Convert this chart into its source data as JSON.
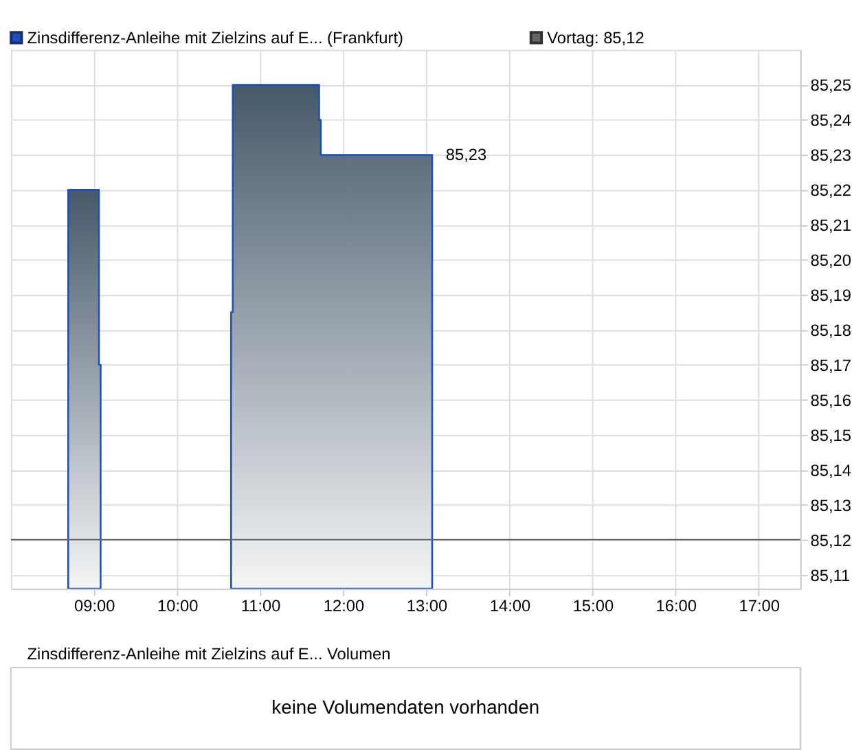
{
  "chart_data": [
    {
      "type": "area",
      "legend": "top left",
      "grid": true,
      "series": [
        {
          "name": "Zinsdifferenz-Anleihe mit Zielzins auf E... (Frankfurt)",
          "color": "#1c4fc0",
          "x": [
            8.69,
            9.06,
            9.08,
            9.09,
            10.65,
            10.67,
            11.71,
            11.73,
            13.07
          ],
          "values": [
            85.22,
            85.17,
            85.12,
            null,
            85.185,
            85.25,
            85.24,
            85.23,
            85.23
          ]
        }
      ],
      "xlim": [
        8.0,
        17.5
      ],
      "xticks": [
        {
          "value": 9,
          "label": "09:00"
        },
        {
          "value": 10,
          "label": "10:00"
        },
        {
          "value": 11,
          "label": "11:00"
        },
        {
          "value": 12,
          "label": "12:00"
        },
        {
          "value": 13,
          "label": "13:00"
        },
        {
          "value": 14,
          "label": "14:00"
        },
        {
          "value": 15,
          "label": "15:00"
        },
        {
          "value": 16,
          "label": "16:00"
        },
        {
          "value": 17,
          "label": "17:00"
        }
      ],
      "ylim": [
        85.106,
        85.26
      ],
      "yticks": [
        {
          "value": 85.11,
          "label": "85,11"
        },
        {
          "value": 85.12,
          "label": "85,12"
        },
        {
          "value": 85.13,
          "label": "85,13"
        },
        {
          "value": 85.14,
          "label": "85,14"
        },
        {
          "value": 85.15,
          "label": "85,15"
        },
        {
          "value": 85.16,
          "label": "85,16"
        },
        {
          "value": 85.17,
          "label": "85,17"
        },
        {
          "value": 85.18,
          "label": "85,18"
        },
        {
          "value": 85.19,
          "label": "85,19"
        },
        {
          "value": 85.2,
          "label": "85,20"
        },
        {
          "value": 85.21,
          "label": "85,21"
        },
        {
          "value": 85.22,
          "label": "85,22"
        },
        {
          "value": 85.23,
          "label": "85,23"
        },
        {
          "value": 85.24,
          "label": "85,24"
        },
        {
          "value": 85.25,
          "label": "85,25"
        }
      ],
      "ref_lines": [
        {
          "axis": "y",
          "value": 85.12,
          "label": "Vortag: 85,12",
          "color": "#666666"
        }
      ],
      "annotations": [
        {
          "text": "85,23",
          "x": 13.07,
          "y": 85.23
        }
      ]
    },
    {
      "type": "other",
      "title": "Zinsdifferenz-Anleihe mit Zielzins auf E... Volumen",
      "annotations": [
        "keine Volumendaten vorhanden"
      ]
    }
  ]
}
